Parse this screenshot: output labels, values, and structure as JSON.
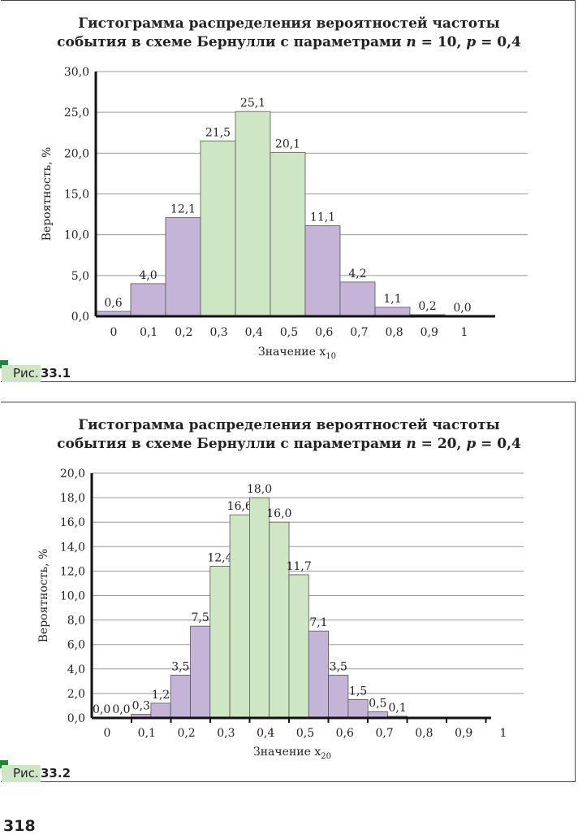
{
  "figures": [
    {
      "title_line1": "Гистограмма распределения вероятностей частоты",
      "title_line2_prefix": "события в схеме Бернулли с параметрами ",
      "n_symbol": "n",
      "n_text": " = 10, ",
      "p_symbol": "p",
      "p_text": " = 0,4",
      "caption_prefix": "Рис.",
      "caption_number": "33.1"
    },
    {
      "title_line1": "Гистограмма распределения вероятностей частоты",
      "title_line2_prefix": "события в схеме Бернулли с параметрами ",
      "n_symbol": "n",
      "n_text": " = 20, ",
      "p_symbol": "p",
      "p_text": " = 0,4",
      "caption_prefix": "Рис.",
      "caption_number": "33.2"
    }
  ],
  "page_number": "318",
  "colors": {
    "purple": "#c4b4d8",
    "green": "#cfe6c4",
    "grid": "#999999",
    "axis": "#111111"
  },
  "chart_data": [
    {
      "type": "bar",
      "title": "Гистограмма распределения вероятностей частоты события в схеме Бернулли с параметрами n = 10, p = 0,4",
      "xlabel": "Значение x",
      "xlabel_sub": "10",
      "ylabel": "Вероятность, %",
      "ylim": [
        0,
        30
      ],
      "yticks": [
        "0,0",
        "5,0",
        "10,0",
        "15,0",
        "20,0",
        "25,0",
        "30,0"
      ],
      "ytick_values": [
        0,
        5,
        10,
        15,
        20,
        25,
        30
      ],
      "xtick_labels": [
        "0",
        "0,1",
        "0,2",
        "0,3",
        "0,4",
        "0,5",
        "0,6",
        "0,7",
        "0,8",
        "0,9",
        "1"
      ],
      "values": [
        0.6,
        4.0,
        12.1,
        21.5,
        25.1,
        20.1,
        11.1,
        4.2,
        1.1,
        0.2,
        0.0
      ],
      "labels": [
        "0,6",
        "4,0",
        "12,1",
        "21,5",
        "25,1",
        "20,1",
        "11,1",
        "4,2",
        "1,1",
        "0,2",
        "0,0"
      ],
      "highlight": [
        3,
        4,
        5
      ],
      "grid": true
    },
    {
      "type": "bar",
      "title": "Гистограмма распределения вероятностей частоты события в схеме Бернулли с параметрами n = 20, p = 0,4",
      "xlabel": "Значение x",
      "xlabel_sub": "20",
      "ylabel": "Вероятность, %",
      "ylim": [
        0,
        20
      ],
      "yticks": [
        "0,0",
        "2,0",
        "4,0",
        "6,0",
        "8,0",
        "10,0",
        "12,0",
        "14,0",
        "16,0",
        "18,0",
        "20,0"
      ],
      "ytick_values": [
        0,
        2,
        4,
        6,
        8,
        10,
        12,
        14,
        16,
        18,
        20
      ],
      "xtick_labels": [
        "0",
        "0,1",
        "0,2",
        "0,3",
        "0,4",
        "0,5",
        "0,6",
        "0,7",
        "0,8",
        "0,9",
        "1"
      ],
      "values": [
        0.0,
        0.0,
        0.3,
        1.2,
        3.5,
        7.5,
        12.4,
        16.6,
        18.0,
        16.0,
        11.7,
        7.1,
        3.5,
        1.5,
        0.5,
        0.1,
        0,
        0,
        0,
        0,
        0
      ],
      "labels": [
        "0,0",
        "0,0",
        "0,3",
        "1,2",
        "3,5",
        "7,5",
        "12,4",
        "16,6",
        "18,0",
        "16,0",
        "11,7",
        "7,1",
        "3,5",
        "1,5",
        "0,5",
        "0,1",
        "",
        "",
        "",
        "",
        ""
      ],
      "highlight": [
        6,
        7,
        8,
        9,
        10
      ],
      "grid": true
    }
  ]
}
